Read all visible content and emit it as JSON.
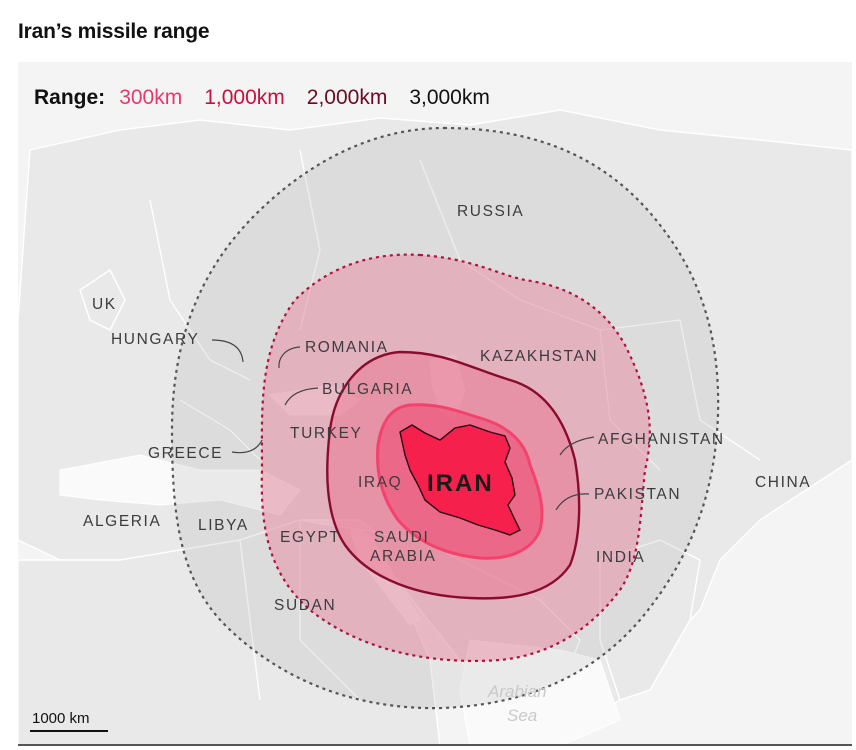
{
  "title": "Iran’s missile range",
  "legend": {
    "label": "Range:",
    "items": [
      {
        "text": "300km",
        "color": "#e8386b"
      },
      {
        "text": "1,000km",
        "color": "#c8103e"
      },
      {
        "text": "2,000km",
        "color": "#6b0a20"
      },
      {
        "text": "3,000km",
        "color": "#111111"
      }
    ]
  },
  "ranges_km": [
    300,
    1000,
    2000,
    3000
  ],
  "labels": {
    "russia": "RUSSIA",
    "uk": "UK",
    "hungary": "HUNGARY",
    "romania": "ROMANIA",
    "bulgaria": "BULGARIA",
    "kazakhstan": "KAZAKHSTAN",
    "turkey": "TURKEY",
    "greece": "GREECE",
    "afghanistan": "AFGHANISTAN",
    "iraq": "IRAQ",
    "iran": "IRAN",
    "pakistan": "PAKISTAN",
    "china": "CHINA",
    "algeria": "ALGERIA",
    "libya": "LIBYA",
    "egypt": "EGYPT",
    "saudi_1": "SAUDI",
    "saudi_2": "ARABIA",
    "india": "INDIA",
    "sudan": "SUDAN",
    "sea_1": "Arabian",
    "sea_2": "Sea"
  },
  "scale": {
    "text": "1000 km"
  },
  "colors": {
    "land": "#ececec",
    "borders": "#ffffff",
    "range_3000_fill": "rgba(150,150,150,0.18)",
    "range_2000_fill": "rgba(236,110,140,0.45)",
    "range_1000_fill": "rgba(232,90,125,0.35)",
    "range_300_fill": "rgba(235,70,110,0.55)",
    "iran_fill": "#f5204c"
  }
}
